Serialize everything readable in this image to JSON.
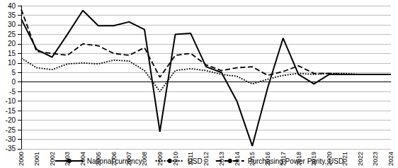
{
  "chart_data": {
    "type": "line",
    "categories": [
      "2000",
      "2001",
      "2002",
      "2003",
      "2004",
      "2005",
      "2006",
      "2007",
      "2008",
      "2009",
      "2010",
      "2011",
      "2012",
      "2013",
      "2014",
      "2015",
      "2016",
      "2017",
      "2018",
      "2019",
      "2020",
      "2021",
      "2022",
      "2023",
      "2024"
    ],
    "series": [
      {
        "name": "National currency",
        "color": "#000000",
        "line_style": "solid",
        "marker": "none",
        "values": [
          33,
          17,
          13,
          25,
          37.5,
          29.5,
          29.5,
          31.5,
          27.5,
          -26,
          25,
          25.5,
          8,
          5,
          -10,
          -33.5,
          -3,
          23,
          4,
          -1,
          4,
          4,
          4,
          4,
          4
        ]
      },
      {
        "name": "USD",
        "color": "#000000",
        "line_style": "dotted",
        "marker": "none",
        "values": [
          12.5,
          7.5,
          6.5,
          9.5,
          10,
          9.5,
          11.5,
          11,
          6,
          -5,
          6,
          7,
          6,
          4,
          3,
          -1,
          1.5,
          3.5,
          4.5,
          4,
          4.5,
          4.5,
          4,
          4,
          4
        ]
      },
      {
        "name": "Purchasing Power Parity, USD",
        "color": "#000000",
        "line_style": "dashed",
        "marker": "none",
        "values": [
          38,
          16,
          15,
          14,
          20,
          19,
          15,
          14,
          18,
          2.5,
          14,
          15,
          9,
          6,
          7.5,
          8,
          3.5,
          5.5,
          8.5,
          4.5,
          4.5,
          4,
          4,
          4,
          4
        ]
      }
    ],
    "ylim": [
      -35,
      40
    ],
    "yticks": [
      -35,
      -30,
      -25,
      -20,
      -15,
      -10,
      -5,
      0,
      5,
      10,
      15,
      20,
      25,
      30,
      35,
      40
    ],
    "grid": true,
    "legend": "bottom"
  }
}
